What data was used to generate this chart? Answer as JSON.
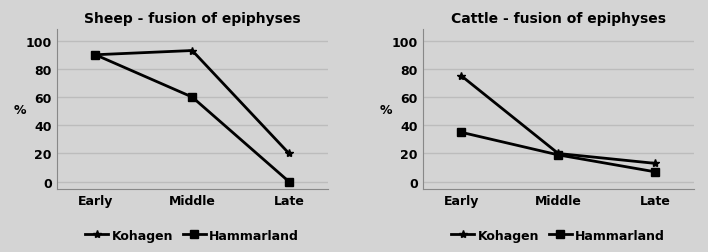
{
  "sheep_title": "Sheep - fusion of epiphyses",
  "cattle_title": "Cattle - fusion of epiphyses",
  "categories": [
    "Early",
    "Middle",
    "Late"
  ],
  "sheep_kohagen": [
    90,
    93,
    20
  ],
  "sheep_hammarland": [
    90,
    60,
    0
  ],
  "cattle_kohagen": [
    75,
    20,
    13
  ],
  "cattle_hammarland": [
    35,
    19,
    7
  ],
  "ylabel": "%",
  "ylim": [
    -5,
    108
  ],
  "yticks": [
    0,
    20,
    40,
    60,
    80,
    100
  ],
  "bg_color": "#d4d4d4",
  "plot_bg_color": "#d4d4d4",
  "grid_color": "#bcbcbc",
  "line_color": "#000000",
  "kohagen_marker": "*",
  "hammarland_marker": "s",
  "legend_kohagen": "Kohagen",
  "legend_hammarland": "Hammarland",
  "title_fontsize": 10,
  "axis_fontsize": 9,
  "tick_fontsize": 9,
  "legend_fontsize": 9
}
